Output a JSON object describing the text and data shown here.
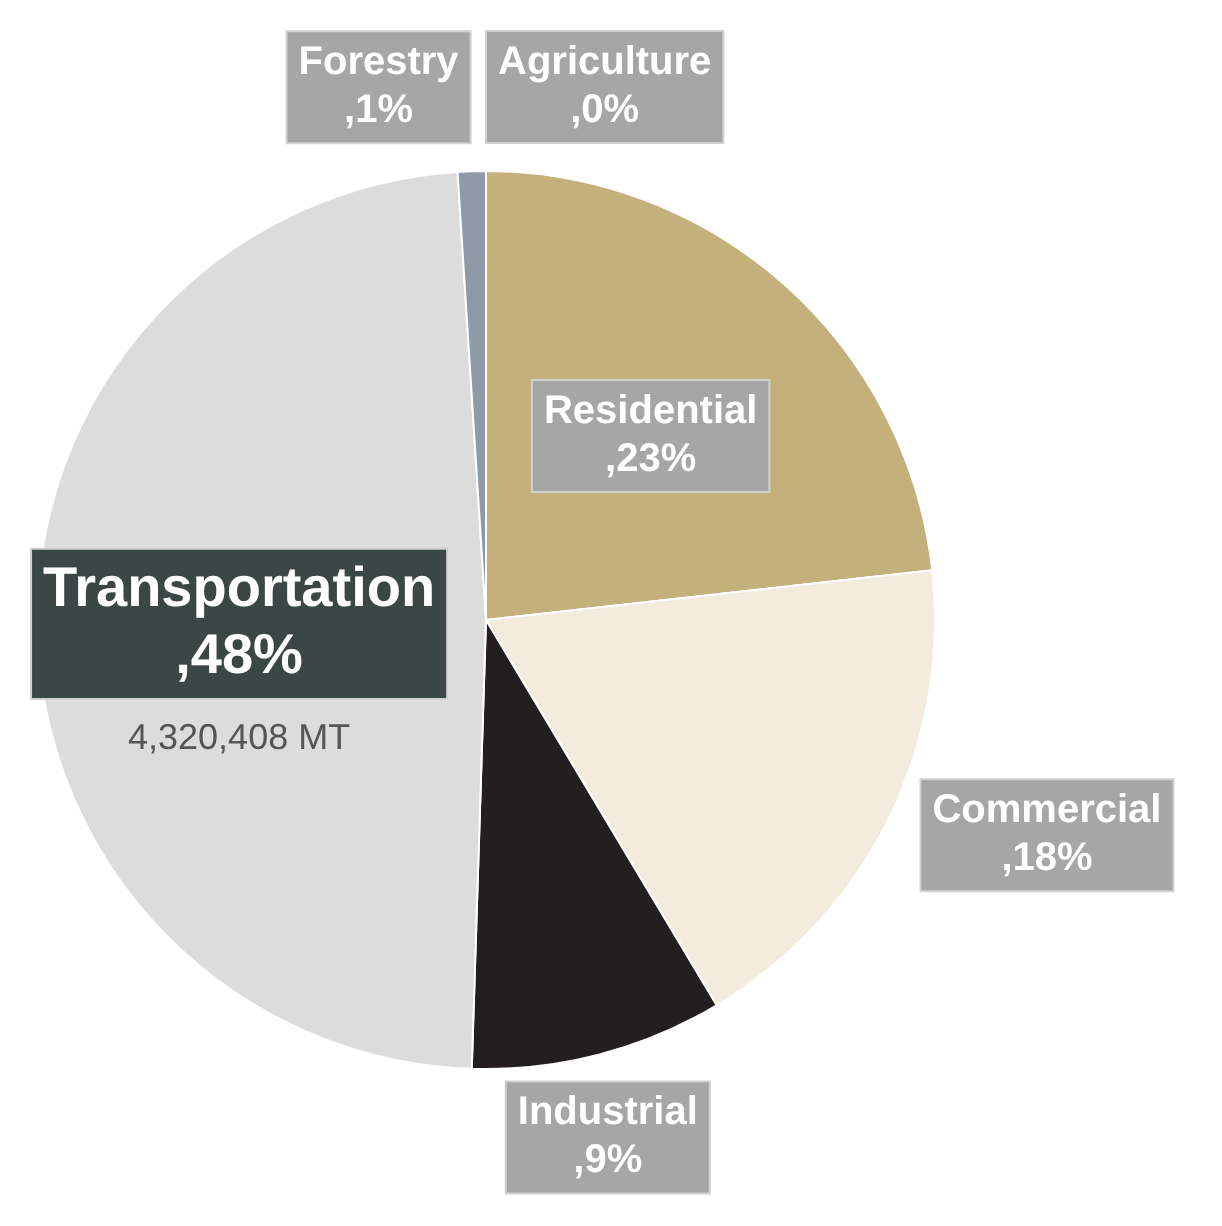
{
  "chart_data": {
    "type": "pie",
    "categories": [
      "Agriculture",
      "Residential",
      "Commercial",
      "Industrial",
      "Transportation",
      "Forestry"
    ],
    "values": [
      0,
      23,
      18,
      9,
      48,
      1
    ],
    "colors": [
      "#b8a060",
      "#c4b07a",
      "#f3ebdc",
      "#231f20",
      "#dcdcdc",
      "#8f9aa8"
    ],
    "value_labels": [
      ",0%",
      ",23%",
      ",18%",
      ",9%",
      ",48%",
      ",1%"
    ],
    "legend": false,
    "annotations": [
      "4,320,408 MT"
    ]
  }
}
